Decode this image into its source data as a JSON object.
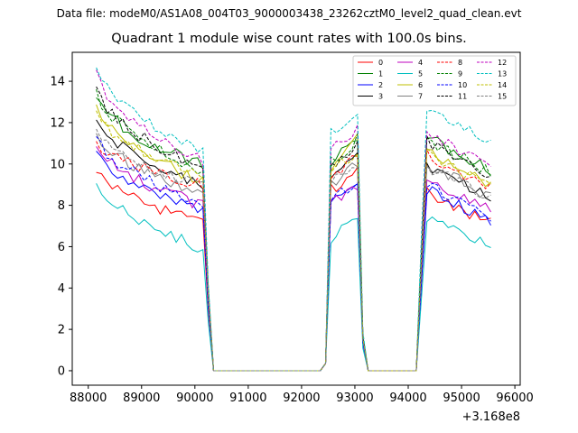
{
  "figure": {
    "suptitle": "Data file: modeM0/AS1A08_004T03_9000003438_23262cztM0_level2_quad_clean.evt",
    "title": "Quadrant 1 module wise count rates with 100.0s bins.",
    "offset_text": "+3.168e8"
  },
  "chart_data": {
    "type": "line",
    "title": "Quadrant 1 module wise count rates with 100.0s bins.",
    "xlabel": "",
    "ylabel": "",
    "x_offset": 316800000,
    "xlim": [
      87700,
      96100
    ],
    "ylim": [
      -0.7,
      15.4
    ],
    "xticks": [
      88000,
      89000,
      90000,
      91000,
      92000,
      93000,
      94000,
      95000,
      96000
    ],
    "yticks": [
      0,
      2,
      4,
      6,
      8,
      10,
      12,
      14
    ],
    "legend_position": "top-right",
    "segments": [
      {
        "start": 88150,
        "step": 100,
        "n": 22
      },
      {
        "start": 90350,
        "step": 100,
        "n": 21
      },
      {
        "start": 92450,
        "step": 100,
        "n": 6
      },
      {
        "start": 93050,
        "step": 100,
        "n": 2
      },
      {
        "start": 93250,
        "step": 100,
        "n": 10
      },
      {
        "start": 94250,
        "step": 100,
        "n": 14
      }
    ],
    "series": [
      {
        "name": "0",
        "color": "#ff0000",
        "dashed": false,
        "a": 9.7,
        "b": 7.2,
        "c": 8.8,
        "d": 9.6,
        "e": 7.2
      },
      {
        "name": "1",
        "color": "#008000",
        "dashed": false,
        "a": 13.3,
        "b": 9.9,
        "c": 10.0,
        "d": 11.3,
        "e": 9.8
      },
      {
        "name": "2",
        "color": "#0000ff",
        "dashed": false,
        "a": 10.7,
        "b": 7.7,
        "c": 8.0,
        "d": 9.0,
        "e": 7.3
      },
      {
        "name": "3",
        "color": "#000000",
        "dashed": false,
        "a": 12.2,
        "b": 8.9,
        "c": 9.5,
        "d": 10.3,
        "e": 8.4
      },
      {
        "name": "4",
        "color": "#bf00bf",
        "dashed": false,
        "a": 10.9,
        "b": 8.0,
        "c": 8.1,
        "d": 8.9,
        "e": 7.8
      },
      {
        "name": "5",
        "color": "#00bfbf",
        "dashed": false,
        "a": 9.1,
        "b": 5.9,
        "c": 6.4,
        "d": 7.3,
        "e": 6.0
      },
      {
        "name": "6",
        "color": "#bfbf00",
        "dashed": false,
        "a": 12.9,
        "b": 9.1,
        "c": 9.6,
        "d": 11.2,
        "e": 9.1
      },
      {
        "name": "7",
        "color": "#808080",
        "dashed": false,
        "a": 11.5,
        "b": 8.6,
        "c": 8.9,
        "d": 10.0,
        "e": 8.5
      },
      {
        "name": "8",
        "color": "#ff0000",
        "dashed": true,
        "a": 11.1,
        "b": 9.0,
        "c": 9.3,
        "d": 10.3,
        "e": 8.9
      },
      {
        "name": "9",
        "color": "#008000",
        "dashed": true,
        "a": 13.6,
        "b": 9.6,
        "c": 10.1,
        "d": 11.2,
        "e": 9.7
      },
      {
        "name": "10",
        "color": "#0000ff",
        "dashed": true,
        "a": 11.3,
        "b": 8.1,
        "c": 8.3,
        "d": 9.2,
        "e": 7.5
      },
      {
        "name": "11",
        "color": "#000000",
        "dashed": true,
        "a": 13.7,
        "b": 9.7,
        "c": 9.9,
        "d": 11.0,
        "e": 9.6
      },
      {
        "name": "12",
        "color": "#bf00bf",
        "dashed": true,
        "a": 14.5,
        "b": 10.1,
        "c": 10.9,
        "d": 11.6,
        "e": 10.0
      },
      {
        "name": "13",
        "color": "#00bfbf",
        "dashed": true,
        "a": 14.6,
        "b": 10.6,
        "c": 11.6,
        "d": 12.5,
        "e": 11.2
      },
      {
        "name": "14",
        "color": "#bfbf00",
        "dashed": true,
        "a": 12.5,
        "b": 9.4,
        "c": 9.8,
        "d": 10.4,
        "e": 9.0
      },
      {
        "name": "15",
        "color": "#808080",
        "dashed": true,
        "a": 11.6,
        "b": 8.9,
        "c": 9.0,
        "d": 10.1,
        "e": 8.4
      }
    ]
  }
}
